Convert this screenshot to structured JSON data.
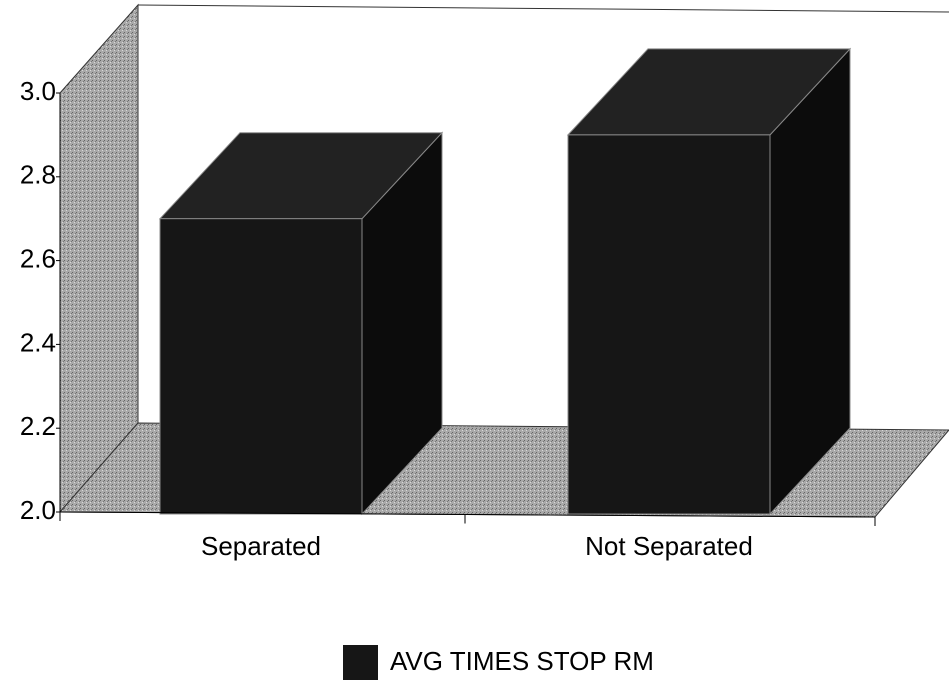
{
  "chart_data": {
    "type": "bar3d",
    "categories": [
      "Separated",
      "Not Separated"
    ],
    "series": [
      {
        "name": "AVG TIMES STOP RM",
        "color": "#161616",
        "values": [
          2.7,
          2.9
        ]
      }
    ],
    "ylim": [
      2.0,
      3.0
    ],
    "yticks": [
      {
        "value": 2.0,
        "label": "2.0"
      },
      2.2,
      2.4,
      2.6,
      2.8,
      {
        "value": 3.0,
        "label": "3.0"
      }
    ]
  }
}
